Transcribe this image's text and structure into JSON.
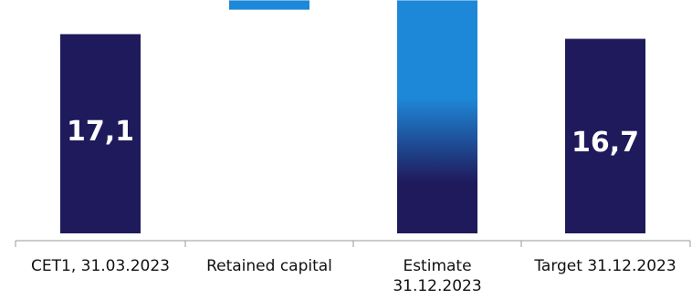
{
  "chart_data": {
    "type": "bar",
    "subtype": "waterfall",
    "categories": [
      [
        "CET1, 31.03.2023"
      ],
      [
        "Retained capital"
      ],
      [
        "Estimate",
        "31.12.2023"
      ],
      [
        "Target 31.12.2023"
      ]
    ],
    "ylim": [
      0,
      20
    ],
    "grid": false,
    "bars": [
      {
        "category": "CET1, 31.03.2023",
        "kind": "total",
        "value": 17.1,
        "label": "17,1",
        "color": "#1f1a5c"
      },
      {
        "category": "Retained capital",
        "kind": "increment",
        "base": 19.2,
        "value": 0.8,
        "label": "",
        "color": "#1e88d8"
      },
      {
        "category": "Estimate 31.12.2023",
        "kind": "stacked-total",
        "segments": [
          {
            "value": 15.9,
            "color": "#1f1a5c"
          },
          {
            "value": 4.1,
            "color": "#1e88d8"
          }
        ],
        "label": ""
      },
      {
        "category": "Target 31.12.2023",
        "kind": "total",
        "value": 16.7,
        "label": "16,7",
        "color": "#1f1a5c"
      }
    ],
    "colors": {
      "navy": "#1f1a5c",
      "blue": "#1e88d8",
      "axis": "#9a9a9a"
    }
  }
}
